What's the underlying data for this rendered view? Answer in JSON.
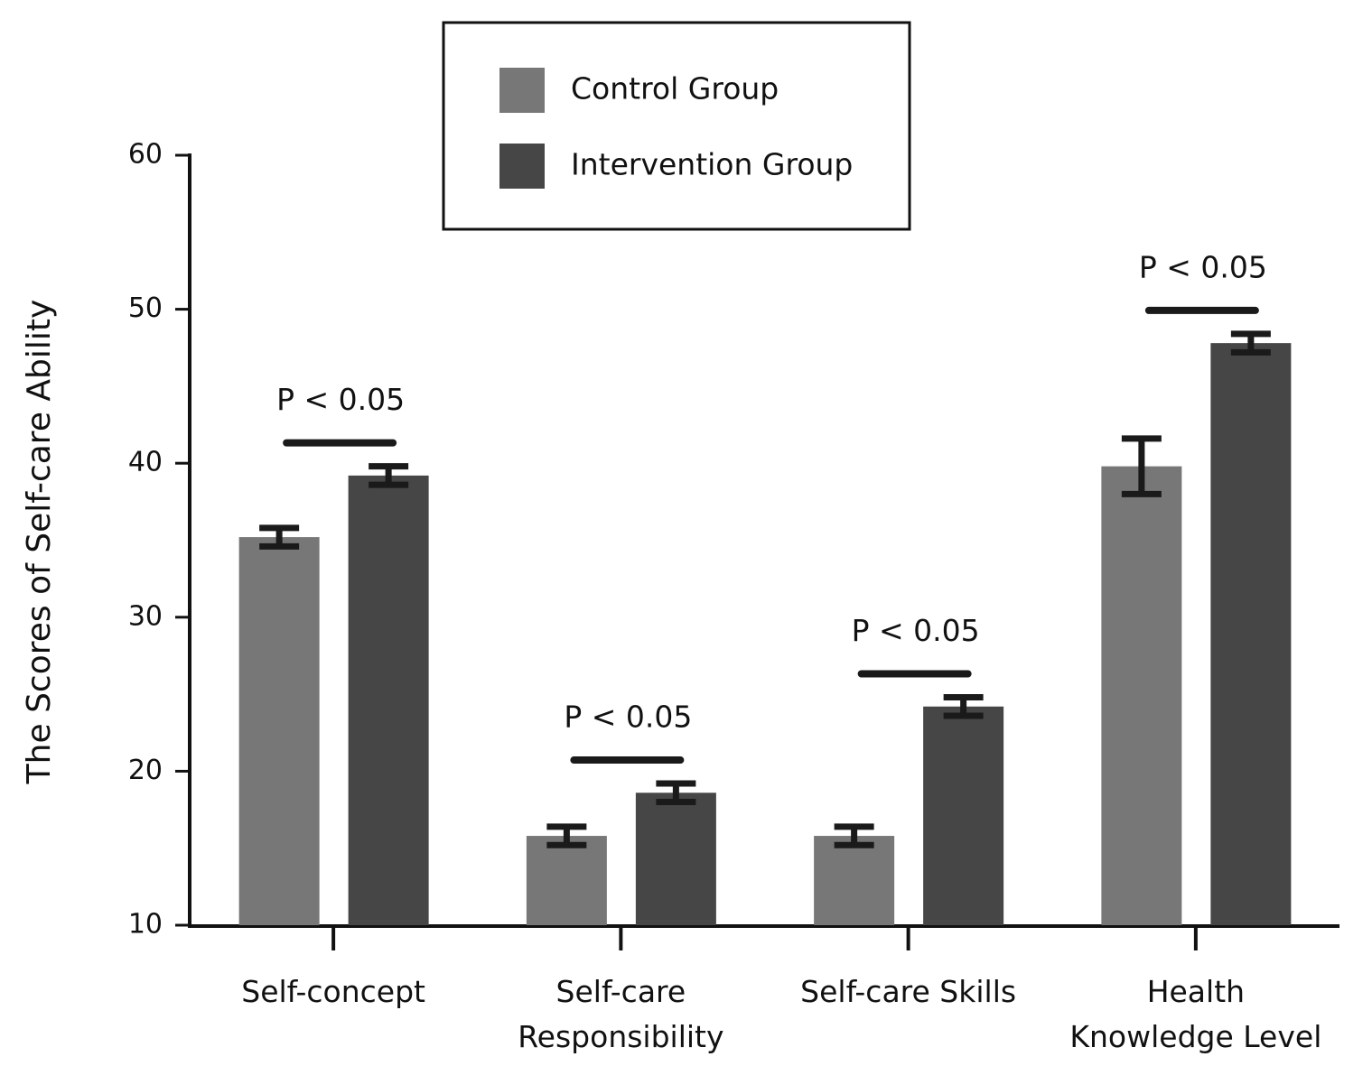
{
  "chart_data": {
    "type": "bar",
    "y_label": "The Scores of Self-care Ability",
    "categories": [
      "Self-concept",
      "Self-care\nResponsibility",
      "Self-care Skills",
      "Health\nKnowledge Level"
    ],
    "series": [
      {
        "name": "Control Group",
        "color": "#777777",
        "values": [
          35.2,
          15.8,
          15.8,
          39.8
        ],
        "errors": [
          0.6,
          0.6,
          0.6,
          1.8
        ]
      },
      {
        "name": "Intervention Group",
        "color": "#464646",
        "values": [
          39.2,
          18.6,
          24.2,
          47.8
        ],
        "errors": [
          0.6,
          0.6,
          0.6,
          0.6
        ]
      }
    ],
    "annotations": [
      "P < 0.05",
      "P < 0.05",
      "P < 0.05",
      "P < 0.05"
    ],
    "ylim": [
      10,
      60
    ],
    "yticks": [
      10,
      20,
      30,
      40,
      50,
      60
    ],
    "grid": false,
    "legend": "top"
  }
}
